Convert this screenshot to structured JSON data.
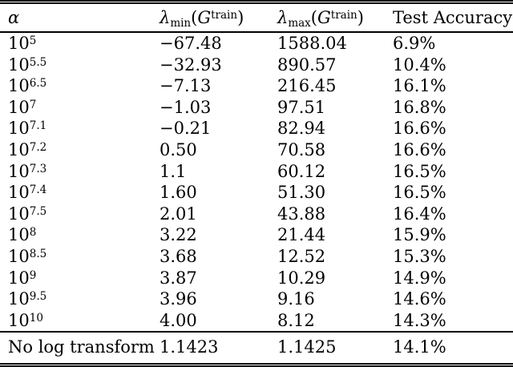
{
  "table": {
    "header": {
      "col_alpha": "α",
      "col_lambda_min": {
        "lambda": "λ",
        "sub": "min",
        "arg_open": "(",
        "arg_g": "G",
        "arg_sup": "train",
        "arg_close": ")"
      },
      "col_lambda_max": {
        "lambda": "λ",
        "sub": "max",
        "arg_open": "(",
        "arg_g": "G",
        "arg_sup": "train",
        "arg_close": ")"
      },
      "col_test_accuracy": "Test Accuracy"
    },
    "rows": [
      {
        "alpha_base": "10",
        "alpha_exp": "5",
        "lambda_min": "−67.48",
        "lambda_max": "1588.04",
        "test_acc": "6.9%"
      },
      {
        "alpha_base": "10",
        "alpha_exp": "5.5",
        "lambda_min": "−32.93",
        "lambda_max": "890.57",
        "test_acc": "10.4%"
      },
      {
        "alpha_base": "10",
        "alpha_exp": "6.5",
        "lambda_min": "−7.13",
        "lambda_max": "216.45",
        "test_acc": "16.1%"
      },
      {
        "alpha_base": "10",
        "alpha_exp": "7",
        "lambda_min": "−1.03",
        "lambda_max": "97.51",
        "test_acc": "16.8%"
      },
      {
        "alpha_base": "10",
        "alpha_exp": "7.1",
        "lambda_min": "−0.21",
        "lambda_max": "82.94",
        "test_acc": "16.6%"
      },
      {
        "alpha_base": "10",
        "alpha_exp": "7.2",
        "lambda_min": "0.50",
        "lambda_max": "70.58",
        "test_acc": "16.6%"
      },
      {
        "alpha_base": "10",
        "alpha_exp": "7.3",
        "lambda_min": "1.1",
        "lambda_max": "60.12",
        "test_acc": "16.5%"
      },
      {
        "alpha_base": "10",
        "alpha_exp": "7.4",
        "lambda_min": "1.60",
        "lambda_max": "51.30",
        "test_acc": "16.5%"
      },
      {
        "alpha_base": "10",
        "alpha_exp": "7.5",
        "lambda_min": "2.01",
        "lambda_max": "43.88",
        "test_acc": "16.4%"
      },
      {
        "alpha_base": "10",
        "alpha_exp": "8",
        "lambda_min": "3.22",
        "lambda_max": "21.44",
        "test_acc": "15.9%"
      },
      {
        "alpha_base": "10",
        "alpha_exp": "8.5",
        "lambda_min": "3.68",
        "lambda_max": "12.52",
        "test_acc": "15.3%"
      },
      {
        "alpha_base": "10",
        "alpha_exp": "9",
        "lambda_min": "3.87",
        "lambda_max": "10.29",
        "test_acc": "14.9%"
      },
      {
        "alpha_base": "10",
        "alpha_exp": "9.5",
        "lambda_min": "3.96",
        "lambda_max": "9.16",
        "test_acc": "14.6%"
      },
      {
        "alpha_base": "10",
        "alpha_exp": "10",
        "lambda_min": "4.00",
        "lambda_max": "8.12",
        "test_acc": "14.3%"
      }
    ],
    "footer_row": {
      "label": "No log transform",
      "lambda_min": "1.1423",
      "lambda_max": "1.1425",
      "test_acc": "14.1%"
    }
  }
}
